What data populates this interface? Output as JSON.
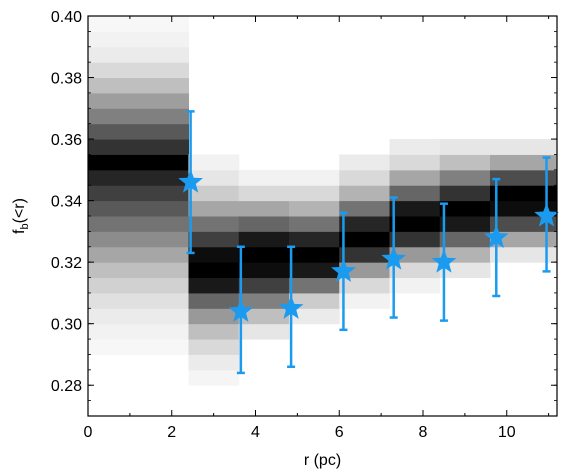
{
  "chart_data": {
    "type": "scatter",
    "title": "",
    "xlabel": "r (pc)",
    "ylabel": {
      "main": "f",
      "sub": "b",
      "suffix": "(<r)"
    },
    "xlim": [
      0,
      11.2
    ],
    "ylim": [
      0.27,
      0.4
    ],
    "xticks": [
      0,
      2,
      4,
      6,
      8,
      10
    ],
    "yticks": [
      0.28,
      0.3,
      0.32,
      0.34,
      0.36,
      0.38,
      0.4
    ],
    "ytick_labels": [
      "0.28",
      "0.30",
      "0.32",
      "0.34",
      "0.36",
      "0.38",
      "0.40"
    ],
    "grid": false,
    "marker_color": "#1b9bf0",
    "points": [
      {
        "x": 2.45,
        "y": 0.346,
        "ylow": 0.323,
        "yhigh": 0.369
      },
      {
        "x": 3.65,
        "y": 0.304,
        "ylow": 0.284,
        "yhigh": 0.325
      },
      {
        "x": 4.85,
        "y": 0.305,
        "ylow": 0.286,
        "yhigh": 0.325
      },
      {
        "x": 6.1,
        "y": 0.317,
        "ylow": 0.298,
        "yhigh": 0.336
      },
      {
        "x": 7.3,
        "y": 0.321,
        "ylow": 0.302,
        "yhigh": 0.341
      },
      {
        "x": 8.5,
        "y": 0.32,
        "ylow": 0.301,
        "yhigh": 0.339
      },
      {
        "x": 9.75,
        "y": 0.328,
        "ylow": 0.309,
        "yhigh": 0.347
      },
      {
        "x": 10.95,
        "y": 0.335,
        "ylow": 0.317,
        "yhigh": 0.354
      }
    ],
    "heatmap": {
      "colormap": "greys",
      "y_bin_width": 0.005,
      "columns": [
        {
          "x0": 0,
          "x1": 2.4,
          "y_start": 0.29,
          "values": [
            0.03,
            0.05,
            0.08,
            0.12,
            0.18,
            0.25,
            0.35,
            0.45,
            0.55,
            0.65,
            0.75,
            0.85,
            1.0,
            0.8,
            0.65,
            0.5,
            0.38,
            0.25,
            0.15,
            0.08,
            0.05,
            0.03
          ]
        },
        {
          "x0": 2.4,
          "x1": 3.6,
          "y_start": 0.28,
          "values": [
            0.04,
            0.08,
            0.15,
            0.25,
            0.4,
            0.6,
            0.9,
            1.0,
            0.95,
            0.75,
            0.55,
            0.35,
            0.2,
            0.1,
            0.05
          ]
        },
        {
          "x0": 3.6,
          "x1": 4.8,
          "y_start": 0.295,
          "values": [
            0.1,
            0.25,
            0.5,
            0.75,
            0.95,
            1.0,
            0.9,
            0.6,
            0.35,
            0.15,
            0.05
          ]
        },
        {
          "x0": 4.8,
          "x1": 6.0,
          "y_start": 0.3,
          "values": [
            0.08,
            0.2,
            0.55,
            0.9,
            1.0,
            0.85,
            0.55,
            0.3,
            0.15,
            0.05
          ]
        },
        {
          "x0": 6.0,
          "x1": 7.2,
          "y_start": 0.305,
          "values": [
            0.05,
            0.15,
            0.4,
            0.8,
            1.0,
            0.85,
            0.55,
            0.3,
            0.15,
            0.08
          ]
        },
        {
          "x0": 7.2,
          "x1": 8.4,
          "y_start": 0.31,
          "values": [
            0.05,
            0.15,
            0.4,
            0.8,
            1.0,
            0.9,
            0.6,
            0.35,
            0.15,
            0.08
          ]
        },
        {
          "x0": 8.4,
          "x1": 9.6,
          "y_start": 0.315,
          "values": [
            0.1,
            0.3,
            0.6,
            0.9,
            1.0,
            0.8,
            0.5,
            0.25,
            0.1
          ]
        },
        {
          "x0": 9.6,
          "x1": 11.2,
          "y_start": 0.32,
          "values": [
            0.1,
            0.35,
            0.7,
            0.95,
            1.0,
            0.7,
            0.35,
            0.1
          ]
        }
      ]
    }
  }
}
